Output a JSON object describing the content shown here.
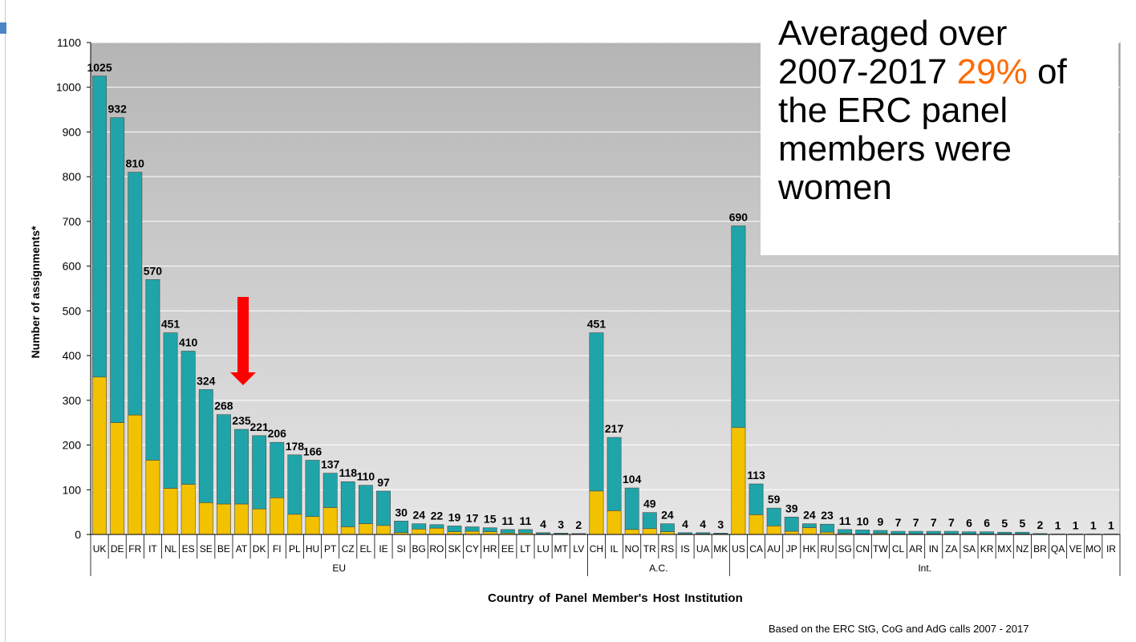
{
  "chart_data": {
    "type": "bar",
    "stacked": true,
    "ylabel": "Number of assignments*",
    "xlabel": "Country of Panel Member's Host Institution",
    "note": "Based on the ERC StG, CoG and AdG calls 2007 - 2017",
    "ylim": [
      0,
      1100
    ],
    "yticks": [
      0,
      100,
      200,
      300,
      400,
      500,
      600,
      700,
      800,
      900,
      1000,
      1100
    ],
    "grid": true,
    "categories": [
      "UK",
      "DE",
      "FR",
      "IT",
      "NL",
      "ES",
      "SE",
      "BE",
      "AT",
      "DK",
      "FI",
      "PL",
      "HU",
      "PT",
      "CZ",
      "EL",
      "IE",
      "SI",
      "BG",
      "RO",
      "SK",
      "CY",
      "HR",
      "EE",
      "LT",
      "LU",
      "MT",
      "LV",
      "CH",
      "IL",
      "NO",
      "TR",
      "RS",
      "IS",
      "UA",
      "MK",
      "US",
      "CA",
      "AU",
      "JP",
      "HK",
      "RU",
      "SG",
      "CN",
      "TW",
      "CL",
      "AR",
      "IN",
      "ZA",
      "SA",
      "KR",
      "MX",
      "NZ",
      "BR",
      "QA",
      "VE",
      "MO",
      "IR"
    ],
    "groups": [
      {
        "label": "EU",
        "start": 0,
        "end": 27
      },
      {
        "label": "A.C.",
        "start": 28,
        "end": 35
      },
      {
        "label": "Int.",
        "start": 36,
        "end": 57
      }
    ],
    "totals": [
      1025,
      932,
      810,
      570,
      451,
      410,
      324,
      268,
      235,
      221,
      206,
      178,
      166,
      137,
      118,
      110,
      97,
      30,
      24,
      22,
      19,
      17,
      15,
      11,
      11,
      4,
      3,
      2,
      451,
      217,
      104,
      49,
      24,
      4,
      4,
      3,
      690,
      113,
      59,
      39,
      24,
      23,
      11,
      10,
      9,
      7,
      7,
      7,
      7,
      6,
      6,
      5,
      5,
      2,
      1,
      1,
      1,
      1
    ],
    "series": [
      {
        "color": "#f2c200",
        "values": [
          352,
          250,
          267,
          166,
          103,
          112,
          71,
          68,
          68,
          57,
          82,
          45,
          40,
          60,
          17,
          24,
          20,
          4,
          12,
          14,
          6,
          7,
          6,
          3,
          3,
          1,
          1,
          1,
          97,
          53,
          11,
          13,
          6,
          1,
          1,
          1,
          239,
          44,
          19,
          7,
          15,
          5,
          2,
          1,
          2,
          1,
          1,
          1,
          1,
          1,
          1,
          1,
          1,
          0,
          0,
          0,
          0,
          0
        ]
      },
      {
        "color": "#1fa5a9",
        "values": [
          673,
          682,
          543,
          404,
          348,
          298,
          253,
          200,
          167,
          164,
          124,
          133,
          126,
          77,
          101,
          86,
          77,
          26,
          12,
          8,
          13,
          10,
          9,
          8,
          8,
          3,
          2,
          1,
          354,
          164,
          93,
          36,
          18,
          3,
          3,
          2,
          451,
          69,
          40,
          32,
          9,
          18,
          9,
          9,
          7,
          6,
          6,
          6,
          6,
          5,
          5,
          4,
          4,
          2,
          1,
          1,
          1,
          1
        ]
      }
    ],
    "annotation": "red-down-arrow"
  },
  "callout": {
    "line1": "Averaged over",
    "line2_pre": "2007-2017",
    "line2_pct": "29%",
    "line2_post": "of",
    "line3": "the ERC panel",
    "line4": "members were",
    "line5": "women"
  }
}
